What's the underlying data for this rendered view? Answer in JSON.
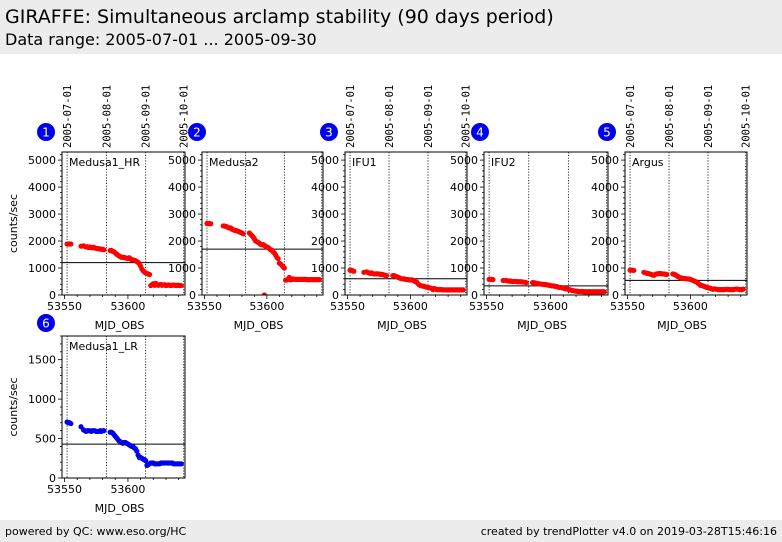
{
  "header": {
    "title": "GIRAFFE: Simultaneous arclamp stability (90 days period)",
    "subtitle": "Data range: 2005-07-01 ... 2005-09-30"
  },
  "footer": {
    "left": "powered by QC: www.eso.org/HC",
    "right": "created by trendPlotter v4.0 on 2019-03-28T15:46:16"
  },
  "colors": {
    "red_points": "#ff0000",
    "blue_points": "#0000ee",
    "badge": "#0000ee",
    "header_bg": "#ececec"
  },
  "chart_data": [
    {
      "type": "scatter",
      "panel": 1,
      "label": "Medusa1_HR",
      "xlabel": "MJD_OBS",
      "ylabel": "counts/sec",
      "xlim": [
        53548,
        53645
      ],
      "ylim": [
        0,
        5300
      ],
      "xticks": [
        53550,
        53600
      ],
      "yticks": [
        0,
        1000,
        2000,
        3000,
        4000,
        5000
      ],
      "date_markers": [
        {
          "mjd": 53552,
          "label": "2005-07-01"
        },
        {
          "mjd": 53583,
          "label": "2005-08-01"
        },
        {
          "mjd": 53614,
          "label": "2005-09-01"
        },
        {
          "mjd": 53644,
          "label": "2005-10-01"
        }
      ],
      "reference_line": 1200,
      "color": "#ff0000",
      "x": [
        53552,
        53553,
        53554,
        53555,
        53563,
        53565,
        53566,
        53567,
        53568,
        53569,
        53570,
        53571,
        53572,
        53573,
        53574,
        53575,
        53576,
        53577,
        53578,
        53579,
        53580,
        53581,
        53586,
        53587,
        53588,
        53589,
        53590,
        53591,
        53592,
        53593,
        53594,
        53595,
        53596,
        53597,
        53598,
        53599,
        53600,
        53601,
        53602,
        53603,
        53604,
        53605,
        53606,
        53607,
        53608,
        53609,
        53610,
        53611,
        53612,
        53613,
        53614,
        53615,
        53616,
        53617,
        53618,
        53619,
        53620,
        53621,
        53622,
        53623,
        53624,
        53625,
        53626,
        53627,
        53628,
        53629,
        53630,
        53631,
        53632,
        53633,
        53634,
        53635,
        53636,
        53637,
        53638,
        53639,
        53640,
        53641,
        53642
      ],
      "y": [
        1890,
        1890,
        1890,
        1890,
        1810,
        1820,
        1800,
        1780,
        1790,
        1760,
        1780,
        1760,
        1750,
        1770,
        1740,
        1730,
        1720,
        1720,
        1700,
        1700,
        1690,
        1680,
        1650,
        1650,
        1620,
        1600,
        1560,
        1520,
        1480,
        1450,
        1420,
        1400,
        1400,
        1390,
        1380,
        1360,
        1350,
        1380,
        1340,
        1310,
        1300,
        1290,
        1270,
        1240,
        1210,
        1160,
        1070,
        960,
        900,
        850,
        820,
        800,
        780,
        760,
        350,
        380,
        420,
        360,
        430,
        380,
        360,
        380,
        390,
        360,
        370,
        380,
        350,
        360,
        370,
        360,
        350,
        360,
        370,
        360,
        350,
        360,
        360,
        350,
        350
      ]
    },
    {
      "type": "scatter",
      "panel": 2,
      "label": "Medusa2",
      "xlabel": "MJD_OBS",
      "ylabel": "",
      "xlim": [
        53548,
        53645
      ],
      "ylim": [
        0,
        5300
      ],
      "xticks": [
        53550,
        53600
      ],
      "yticks": [
        0,
        1000,
        2000,
        3000,
        4000,
        5000
      ],
      "date_markers": [
        {
          "mjd": 53552,
          "label": "2005-07-01"
        },
        {
          "mjd": 53583,
          "label": "2005-08-01"
        },
        {
          "mjd": 53614,
          "label": "2005-09-01"
        },
        {
          "mjd": 53644,
          "label": "2005-10-01"
        }
      ],
      "reference_line": 1700,
      "color": "#ff0000",
      "x": [
        53552,
        53553,
        53554,
        53555,
        53565,
        53566,
        53567,
        53568,
        53569,
        53570,
        53571,
        53572,
        53573,
        53574,
        53575,
        53576,
        53577,
        53578,
        53579,
        53580,
        53581,
        53586,
        53587,
        53588,
        53589,
        53590,
        53591,
        53592,
        53593,
        53594,
        53595,
        53596,
        53597,
        53598,
        53599,
        53600,
        53601,
        53602,
        53603,
        53604,
        53605,
        53606,
        53607,
        53608,
        53609,
        53610,
        53611,
        53612,
        53613,
        53614,
        53615,
        53616,
        53617,
        53618,
        53619,
        53620,
        53621,
        53622,
        53623,
        53624,
        53625,
        53626,
        53627,
        53628,
        53629,
        53630,
        53631,
        53632,
        53633,
        53634,
        53635,
        53636,
        53637,
        53638,
        53639,
        53640,
        53641,
        53642,
        53598
      ],
      "y": [
        2650,
        2650,
        2650,
        2640,
        2560,
        2560,
        2540,
        2530,
        2500,
        2480,
        2490,
        2440,
        2420,
        2400,
        2390,
        2380,
        2360,
        2340,
        2320,
        2300,
        2270,
        2300,
        2250,
        2200,
        2150,
        2080,
        2000,
        1980,
        1950,
        1920,
        1880,
        1860,
        1870,
        1840,
        1800,
        1780,
        1760,
        1720,
        1680,
        1660,
        1600,
        1560,
        1480,
        1400,
        1350,
        1180,
        1150,
        1100,
        1050,
        1000,
        550,
        560,
        580,
        650,
        560,
        580,
        600,
        580,
        580,
        580,
        580,
        580,
        580,
        580,
        580,
        580,
        580,
        570,
        570,
        570,
        570,
        570,
        570,
        570,
        570,
        570,
        570,
        570,
        0
      ]
    },
    {
      "type": "scatter",
      "panel": 3,
      "label": "IFU1",
      "xlabel": "MJD_OBS",
      "ylabel": "",
      "xlim": [
        53548,
        53645
      ],
      "ylim": [
        0,
        5300
      ],
      "xticks": [
        53550,
        53600
      ],
      "yticks": [
        0,
        1000,
        2000,
        3000,
        4000,
        5000
      ],
      "date_markers": [
        {
          "mjd": 53552,
          "label": "2005-07-01"
        },
        {
          "mjd": 53583,
          "label": "2005-08-01"
        },
        {
          "mjd": 53614,
          "label": "2005-09-01"
        },
        {
          "mjd": 53644,
          "label": "2005-10-01"
        }
      ],
      "reference_line": 600,
      "color": "#ff0000",
      "x": [
        53552,
        53553,
        53554,
        53555,
        53563,
        53565,
        53566,
        53567,
        53568,
        53569,
        53570,
        53571,
        53572,
        53573,
        53574,
        53575,
        53576,
        53577,
        53578,
        53579,
        53580,
        53581,
        53586,
        53587,
        53588,
        53589,
        53590,
        53591,
        53592,
        53593,
        53594,
        53595,
        53596,
        53597,
        53598,
        53599,
        53600,
        53601,
        53602,
        53603,
        53604,
        53605,
        53606,
        53607,
        53608,
        53609,
        53610,
        53611,
        53612,
        53613,
        53614,
        53615,
        53616,
        53617,
        53618,
        53619,
        53620,
        53621,
        53622,
        53623,
        53624,
        53625,
        53626,
        53627,
        53628,
        53629,
        53630,
        53631,
        53632,
        53633,
        53634,
        53635,
        53636,
        53637,
        53638,
        53639,
        53640,
        53641,
        53642
      ],
      "y": [
        920,
        920,
        900,
        880,
        840,
        860,
        840,
        820,
        800,
        820,
        800,
        780,
        780,
        790,
        780,
        780,
        770,
        760,
        760,
        740,
        730,
        720,
        720,
        720,
        700,
        680,
        660,
        640,
        620,
        600,
        600,
        600,
        580,
        580,
        570,
        560,
        560,
        560,
        550,
        520,
        500,
        480,
        420,
        380,
        350,
        340,
        330,
        320,
        300,
        290,
        280,
        270,
        260,
        240,
        200,
        240,
        220,
        200,
        200,
        200,
        200,
        200,
        190,
        190,
        190,
        190,
        190,
        190,
        190,
        190,
        190,
        190,
        190,
        190,
        190,
        190,
        190,
        190,
        190
      ]
    },
    {
      "type": "scatter",
      "panel": 4,
      "label": "IFU2",
      "xlabel": "MJD_OBS",
      "ylabel": "",
      "xlim": [
        53548,
        53645
      ],
      "ylim": [
        0,
        5300
      ],
      "xticks": [
        53550,
        53600
      ],
      "yticks": [
        0,
        1000,
        2000,
        3000,
        4000,
        5000
      ],
      "date_markers": [
        {
          "mjd": 53552,
          "label": "2005-07-01"
        },
        {
          "mjd": 53583,
          "label": "2005-08-01"
        },
        {
          "mjd": 53614,
          "label": "2005-09-01"
        },
        {
          "mjd": 53644,
          "label": "2005-10-01"
        }
      ],
      "reference_line": 340,
      "color": "#ff0000",
      "x": [
        53552,
        53553,
        53554,
        53555,
        53563,
        53565,
        53566,
        53567,
        53568,
        53569,
        53570,
        53571,
        53572,
        53573,
        53574,
        53575,
        53576,
        53577,
        53578,
        53579,
        53580,
        53581,
        53586,
        53587,
        53588,
        53589,
        53590,
        53591,
        53592,
        53593,
        53594,
        53595,
        53596,
        53597,
        53598,
        53599,
        53600,
        53601,
        53602,
        53603,
        53604,
        53605,
        53606,
        53607,
        53608,
        53609,
        53610,
        53611,
        53612,
        53613,
        53614,
        53615,
        53616,
        53617,
        53618,
        53619,
        53620,
        53621,
        53622,
        53623,
        53624,
        53625,
        53626,
        53627,
        53628,
        53629,
        53630,
        53631,
        53632,
        53633,
        53634,
        53635,
        53636,
        53637,
        53638,
        53639,
        53640,
        53641,
        53642
      ],
      "y": [
        580,
        580,
        580,
        570,
        540,
        540,
        530,
        520,
        510,
        520,
        500,
        500,
        500,
        500,
        490,
        490,
        490,
        490,
        480,
        480,
        470,
        460,
        460,
        460,
        440,
        430,
        420,
        420,
        410,
        400,
        400,
        390,
        390,
        380,
        370,
        360,
        350,
        340,
        340,
        330,
        320,
        310,
        290,
        280,
        280,
        270,
        260,
        240,
        230,
        220,
        210,
        200,
        180,
        170,
        160,
        150,
        140,
        140,
        130,
        130,
        130,
        130,
        120,
        120,
        120,
        120,
        120,
        120,
        120,
        120,
        120,
        120,
        120,
        120,
        120,
        120,
        120,
        120,
        120
      ]
    },
    {
      "type": "scatter",
      "panel": 5,
      "label": "Argus",
      "xlabel": "MJD_OBS",
      "ylabel": "",
      "xlim": [
        53548,
        53645
      ],
      "ylim": [
        0,
        5300
      ],
      "xticks": [
        53550,
        53600
      ],
      "yticks": [
        0,
        1000,
        2000,
        3000,
        4000,
        5000
      ],
      "date_markers": [
        {
          "mjd": 53552,
          "label": "2005-07-01"
        },
        {
          "mjd": 53583,
          "label": "2005-08-01"
        },
        {
          "mjd": 53614,
          "label": "2005-09-01"
        },
        {
          "mjd": 53644,
          "label": "2005-10-01"
        }
      ],
      "reference_line": 540,
      "color": "#ff0000",
      "x": [
        53552,
        53553,
        53554,
        53555,
        53563,
        53565,
        53566,
        53567,
        53568,
        53569,
        53570,
        53571,
        53572,
        53573,
        53574,
        53575,
        53576,
        53577,
        53578,
        53579,
        53580,
        53581,
        53586,
        53587,
        53588,
        53589,
        53590,
        53591,
        53592,
        53593,
        53594,
        53595,
        53596,
        53597,
        53598,
        53599,
        53600,
        53601,
        53602,
        53603,
        53604,
        53605,
        53606,
        53607,
        53608,
        53609,
        53610,
        53611,
        53612,
        53613,
        53614,
        53615,
        53616,
        53617,
        53618,
        53619,
        53620,
        53621,
        53622,
        53623,
        53624,
        53625,
        53626,
        53627,
        53628,
        53629,
        53630,
        53631,
        53632,
        53633,
        53634,
        53635,
        53636,
        53637,
        53638,
        53639,
        53640,
        53641,
        53642
      ],
      "y": [
        920,
        920,
        920,
        910,
        840,
        810,
        800,
        790,
        780,
        760,
        740,
        730,
        760,
        780,
        790,
        790,
        800,
        790,
        780,
        780,
        770,
        760,
        780,
        770,
        750,
        720,
        690,
        660,
        640,
        620,
        620,
        610,
        610,
        600,
        600,
        590,
        580,
        560,
        540,
        520,
        500,
        480,
        440,
        400,
        360,
        350,
        340,
        320,
        300,
        280,
        270,
        260,
        250,
        230,
        210,
        230,
        220,
        210,
        200,
        200,
        200,
        200,
        200,
        200,
        210,
        210,
        210,
        200,
        200,
        200,
        200,
        210,
        220,
        220,
        210,
        200,
        200,
        200,
        220
      ]
    },
    {
      "type": "scatter",
      "panel": 6,
      "label": "Medusa1_LR",
      "xlabel": "MJD_OBS",
      "ylabel": "counts/sec",
      "xlim": [
        53548,
        53645
      ],
      "ylim": [
        0,
        1800
      ],
      "xticks": [
        53550,
        53600
      ],
      "yticks": [
        0,
        500,
        1000,
        1500
      ],
      "date_markers": [
        {
          "mjd": 53552,
          "label": "2005-07-01"
        },
        {
          "mjd": 53583,
          "label": "2005-08-01"
        },
        {
          "mjd": 53614,
          "label": "2005-09-01"
        },
        {
          "mjd": 53644,
          "label": "2005-10-01"
        }
      ],
      "reference_line": 430,
      "color": "#0000ee",
      "x": [
        53552,
        53553,
        53554,
        53555,
        53563,
        53565,
        53566,
        53567,
        53568,
        53569,
        53570,
        53571,
        53572,
        53573,
        53574,
        53575,
        53576,
        53577,
        53578,
        53579,
        53580,
        53581,
        53586,
        53587,
        53588,
        53589,
        53590,
        53591,
        53592,
        53593,
        53594,
        53595,
        53596,
        53597,
        53598,
        53599,
        53600,
        53601,
        53602,
        53603,
        53604,
        53605,
        53606,
        53607,
        53608,
        53609,
        53610,
        53611,
        53612,
        53613,
        53614,
        53615,
        53616,
        53617,
        53618,
        53619,
        53620,
        53621,
        53622,
        53623,
        53624,
        53625,
        53626,
        53627,
        53628,
        53629,
        53630,
        53631,
        53632,
        53633,
        53634,
        53635,
        53636,
        53637,
        53638,
        53639,
        53640,
        53641,
        53642
      ],
      "y": [
        710,
        700,
        700,
        690,
        650,
        610,
        600,
        590,
        600,
        600,
        600,
        590,
        600,
        600,
        600,
        590,
        590,
        590,
        600,
        590,
        600,
        600,
        580,
        580,
        570,
        550,
        530,
        510,
        490,
        470,
        460,
        450,
        440,
        450,
        450,
        440,
        430,
        420,
        410,
        400,
        400,
        380,
        370,
        340,
        290,
        260,
        260,
        250,
        240,
        230,
        220,
        160,
        170,
        180,
        190,
        190,
        190,
        180,
        180,
        180,
        180,
        180,
        190,
        190,
        190,
        190,
        190,
        190,
        190,
        190,
        190,
        190,
        180,
        180,
        180,
        180,
        180,
        180,
        180
      ]
    }
  ]
}
